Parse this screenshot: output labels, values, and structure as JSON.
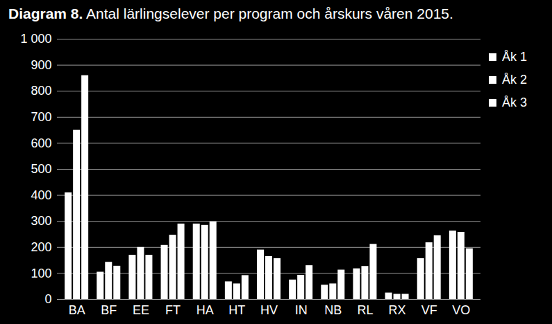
{
  "chart_data": {
    "type": "bar",
    "title": "Diagram 8. Antal lärlingselever per program och årskurs våren 2015.",
    "categories": [
      "BA",
      "BF",
      "EE",
      "FT",
      "HA",
      "HT",
      "HV",
      "IN",
      "NB",
      "RL",
      "RX",
      "VF",
      "VO"
    ],
    "series": [
      {
        "name": "Åk 1",
        "color": "#ffffff",
        "values": [
          410,
          105,
          170,
          208,
          290,
          68,
          190,
          75,
          55,
          118,
          25,
          157,
          263
        ]
      },
      {
        "name": "Åk 2",
        "color": "#ffffff",
        "values": [
          650,
          143,
          200,
          247,
          285,
          60,
          165,
          93,
          60,
          127,
          20,
          218,
          258
        ]
      },
      {
        "name": "Åk 3",
        "color": "#ffffff",
        "values": [
          860,
          128,
          170,
          290,
          298,
          92,
          157,
          130,
          113,
          212,
          20,
          245,
          195
        ]
      }
    ],
    "ylim": [
      0,
      1000
    ],
    "yticks": [
      0,
      100,
      200,
      300,
      400,
      500,
      600,
      700,
      800,
      900,
      {
        "value": 1000,
        "label": "1 000"
      }
    ],
    "grid": true,
    "legend": "right"
  }
}
